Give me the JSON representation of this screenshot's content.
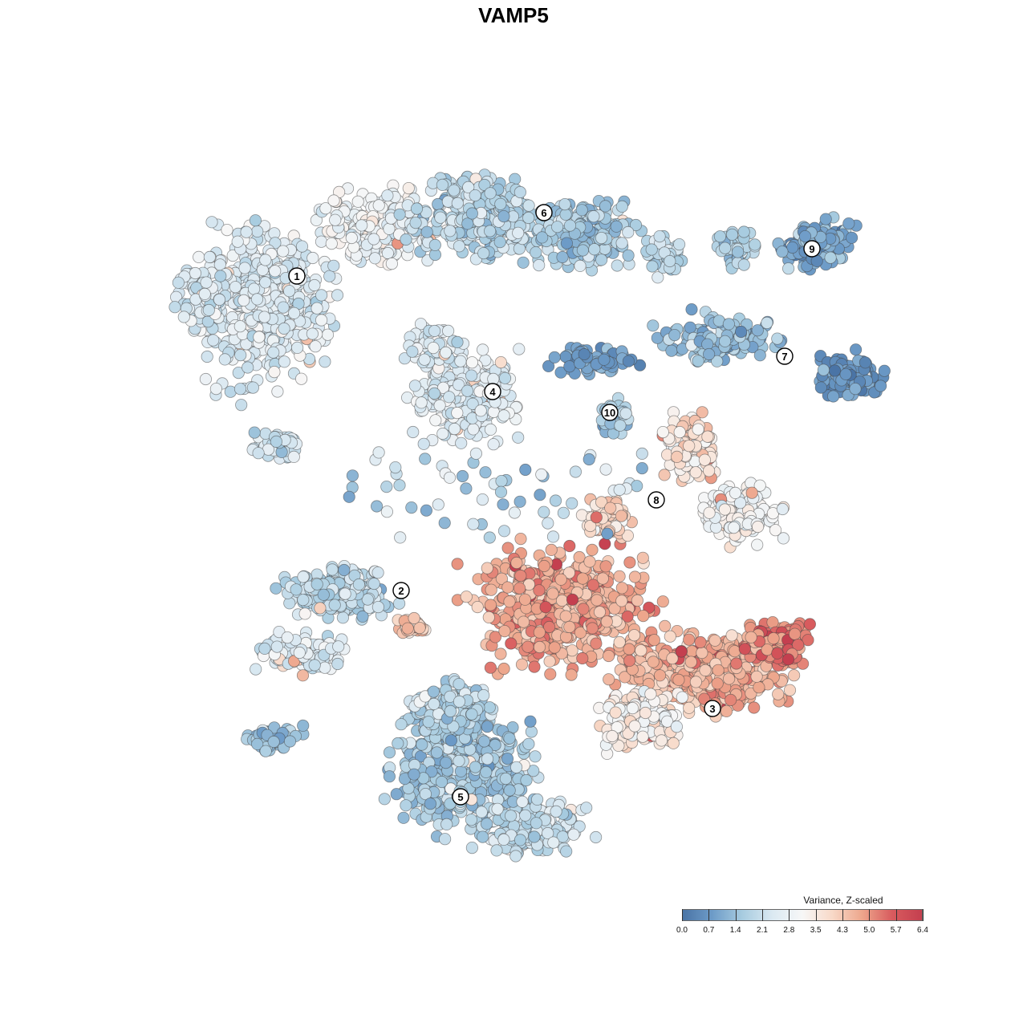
{
  "chart_data": {
    "type": "scatter",
    "title": "VAMP5",
    "xlabel": "",
    "ylabel": "",
    "grid": false,
    "point_sizes": "uniform",
    "legend": {
      "title": "Variance, Z-scaled",
      "placement": "bottom-right",
      "ticks": [
        "0.0",
        "0.7",
        "1.4",
        "2.1",
        "2.8",
        "3.5",
        "4.3",
        "5.0",
        "5.7",
        "6.4"
      ],
      "range": [
        0.0,
        6.4
      ],
      "colormap": [
        "#4a74a6",
        "#6e9cc8",
        "#a8cce0",
        "#dbe9f2",
        "#f7f7f7",
        "#f8d9c8",
        "#eda68c",
        "#d85b5e",
        "#c43f4f"
      ]
    },
    "clusters": [
      {
        "label": "1",
        "mean_value": 2.5
      },
      {
        "label": "2",
        "mean_value": 1.9
      },
      {
        "label": "3",
        "mean_value": 4.4
      },
      {
        "label": "4",
        "mean_value": 2.4
      },
      {
        "label": "5",
        "mean_value": 1.6
      },
      {
        "label": "6",
        "mean_value": 1.9
      },
      {
        "label": "7",
        "mean_value": 1.1
      },
      {
        "label": "8",
        "mean_value": 3.7
      },
      {
        "label": "9",
        "mean_value": 0.9
      },
      {
        "label": "10",
        "mean_value": 1.6
      }
    ]
  }
}
